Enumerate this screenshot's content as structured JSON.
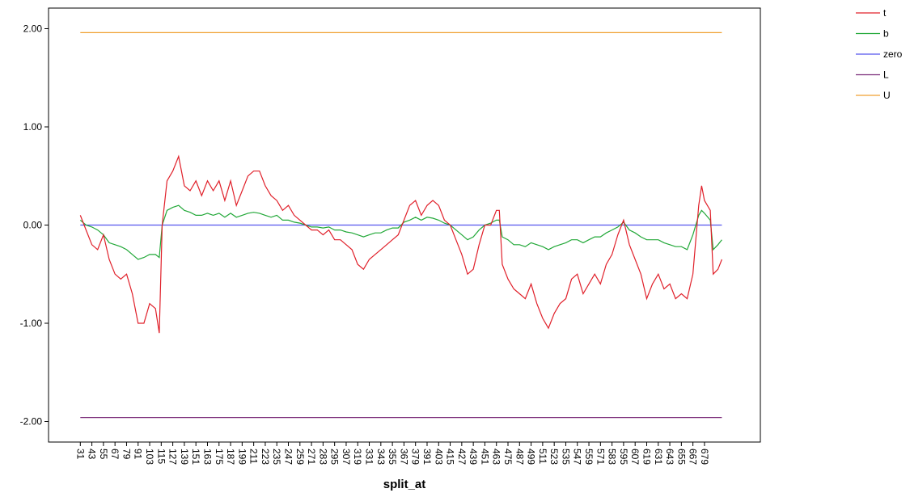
{
  "chart_data": {
    "type": "line",
    "xlabel": "split_at",
    "legend": "right",
    "xlim": [
      -2,
      737
    ],
    "ylim": [
      -2.21,
      2.21
    ],
    "yticks": [
      {
        "value": -2,
        "label": "-2.00"
      },
      {
        "value": -1,
        "label": "-1.00"
      },
      {
        "value": 0,
        "label": "0.00"
      },
      {
        "value": 1,
        "label": "1.00"
      },
      {
        "value": 2,
        "label": "2.00"
      }
    ],
    "xticks": [
      31,
      43,
      55,
      67,
      79,
      91,
      103,
      115,
      127,
      139,
      151,
      163,
      175,
      187,
      199,
      211,
      223,
      235,
      247,
      259,
      271,
      283,
      295,
      307,
      319,
      331,
      343,
      355,
      367,
      379,
      391,
      403,
      415,
      427,
      439,
      451,
      463,
      475,
      487,
      499,
      511,
      523,
      535,
      547,
      559,
      571,
      583,
      595,
      607,
      619,
      631,
      643,
      655,
      667,
      679
    ],
    "series": [
      {
        "name": "t",
        "color": "#e0202a",
        "x": [
          31,
          37,
          43,
          49,
          55,
          61,
          67,
          73,
          79,
          85,
          91,
          97,
          103,
          109,
          113,
          116,
          121,
          127,
          133,
          139,
          145,
          151,
          157,
          163,
          169,
          175,
          181,
          187,
          193,
          199,
          205,
          211,
          217,
          223,
          229,
          235,
          241,
          247,
          253,
          259,
          265,
          271,
          277,
          283,
          289,
          295,
          301,
          307,
          313,
          319,
          325,
          331,
          337,
          343,
          349,
          355,
          361,
          367,
          373,
          379,
          385,
          391,
          397,
          403,
          409,
          415,
          421,
          427,
          433,
          439,
          445,
          451,
          457,
          463,
          466,
          469,
          475,
          481,
          487,
          493,
          499,
          505,
          511,
          517,
          523,
          529,
          535,
          541,
          547,
          553,
          559,
          565,
          571,
          577,
          583,
          589,
          595,
          601,
          607,
          613,
          619,
          625,
          631,
          637,
          643,
          649,
          655,
          661,
          667,
          673,
          676,
          679,
          685,
          688,
          693,
          697
        ],
        "values": [
          0.1,
          -0.05,
          -0.2,
          -0.25,
          -0.1,
          -0.35,
          -0.5,
          -0.55,
          -0.5,
          -0.7,
          -1.0,
          -1.0,
          -0.8,
          -0.85,
          -1.1,
          0.0,
          0.45,
          0.55,
          0.7,
          0.4,
          0.35,
          0.45,
          0.3,
          0.45,
          0.35,
          0.45,
          0.25,
          0.45,
          0.2,
          0.35,
          0.5,
          0.55,
          0.55,
          0.4,
          0.3,
          0.25,
          0.15,
          0.2,
          0.1,
          0.05,
          0.0,
          -0.05,
          -0.05,
          -0.1,
          -0.05,
          -0.15,
          -0.15,
          -0.2,
          -0.25,
          -0.4,
          -0.45,
          -0.35,
          -0.3,
          -0.25,
          -0.2,
          -0.15,
          -0.1,
          0.05,
          0.2,
          0.25,
          0.1,
          0.2,
          0.25,
          0.2,
          0.05,
          0.0,
          -0.15,
          -0.3,
          -0.5,
          -0.45,
          -0.2,
          0.0,
          0.0,
          0.15,
          0.15,
          -0.4,
          -0.55,
          -0.65,
          -0.7,
          -0.75,
          -0.6,
          -0.8,
          -0.95,
          -1.05,
          -0.9,
          -0.8,
          -0.75,
          -0.55,
          -0.5,
          -0.7,
          -0.6,
          -0.5,
          -0.6,
          -0.4,
          -0.3,
          -0.1,
          0.05,
          -0.2,
          -0.35,
          -0.5,
          -0.75,
          -0.6,
          -0.5,
          -0.65,
          -0.6,
          -0.75,
          -0.7,
          -0.75,
          -0.5,
          0.2,
          0.4,
          0.25,
          0.15,
          -0.5,
          -0.45,
          -0.35
        ]
      },
      {
        "name": "b",
        "color": "#22a838",
        "x": [
          31,
          37,
          43,
          49,
          55,
          61,
          67,
          73,
          79,
          85,
          91,
          97,
          103,
          109,
          113,
          116,
          121,
          127,
          133,
          139,
          145,
          151,
          157,
          163,
          169,
          175,
          181,
          187,
          193,
          199,
          205,
          211,
          217,
          223,
          229,
          235,
          241,
          247,
          253,
          259,
          265,
          271,
          277,
          283,
          289,
          295,
          301,
          307,
          313,
          319,
          325,
          331,
          337,
          343,
          349,
          355,
          361,
          367,
          373,
          379,
          385,
          391,
          397,
          403,
          409,
          415,
          421,
          427,
          433,
          439,
          445,
          451,
          457,
          463,
          466,
          469,
          475,
          481,
          487,
          493,
          499,
          505,
          511,
          517,
          523,
          529,
          535,
          541,
          547,
          553,
          559,
          565,
          571,
          577,
          583,
          589,
          595,
          601,
          607,
          613,
          619,
          625,
          631,
          637,
          643,
          649,
          655,
          661,
          667,
          673,
          676,
          679,
          685,
          688,
          693,
          697
        ],
        "values": [
          0.05,
          0.0,
          -0.02,
          -0.05,
          -0.1,
          -0.18,
          -0.2,
          -0.22,
          -0.25,
          -0.3,
          -0.35,
          -0.33,
          -0.3,
          -0.3,
          -0.33,
          0.0,
          0.15,
          0.18,
          0.2,
          0.15,
          0.13,
          0.1,
          0.1,
          0.12,
          0.1,
          0.12,
          0.08,
          0.12,
          0.08,
          0.1,
          0.12,
          0.13,
          0.12,
          0.1,
          0.08,
          0.1,
          0.05,
          0.05,
          0.03,
          0.02,
          0.0,
          -0.02,
          -0.02,
          -0.03,
          -0.02,
          -0.05,
          -0.05,
          -0.07,
          -0.08,
          -0.1,
          -0.12,
          -0.1,
          -0.08,
          -0.08,
          -0.05,
          -0.03,
          -0.03,
          0.03,
          0.05,
          0.08,
          0.05,
          0.08,
          0.07,
          0.05,
          0.02,
          0.0,
          -0.05,
          -0.1,
          -0.15,
          -0.12,
          -0.05,
          0.0,
          0.02,
          0.05,
          0.05,
          -0.12,
          -0.15,
          -0.2,
          -0.2,
          -0.22,
          -0.18,
          -0.2,
          -0.22,
          -0.25,
          -0.22,
          -0.2,
          -0.18,
          -0.15,
          -0.15,
          -0.18,
          -0.15,
          -0.12,
          -0.12,
          -0.08,
          -0.05,
          -0.02,
          0.03,
          -0.05,
          -0.08,
          -0.12,
          -0.15,
          -0.15,
          -0.15,
          -0.18,
          -0.2,
          -0.22,
          -0.22,
          -0.25,
          -0.1,
          0.1,
          0.15,
          0.12,
          0.05,
          -0.25,
          -0.2,
          -0.15
        ]
      },
      {
        "name": "zero",
        "color": "#5555ee",
        "x": [
          31,
          697
        ],
        "values": [
          0,
          0
        ]
      },
      {
        "name": "L",
        "color": "#7a2a78",
        "x": [
          31,
          697
        ],
        "values": [
          -1.96,
          -1.96
        ]
      },
      {
        "name": "U",
        "color": "#f0a030",
        "x": [
          31,
          697
        ],
        "values": [
          1.96,
          1.96
        ]
      }
    ]
  }
}
